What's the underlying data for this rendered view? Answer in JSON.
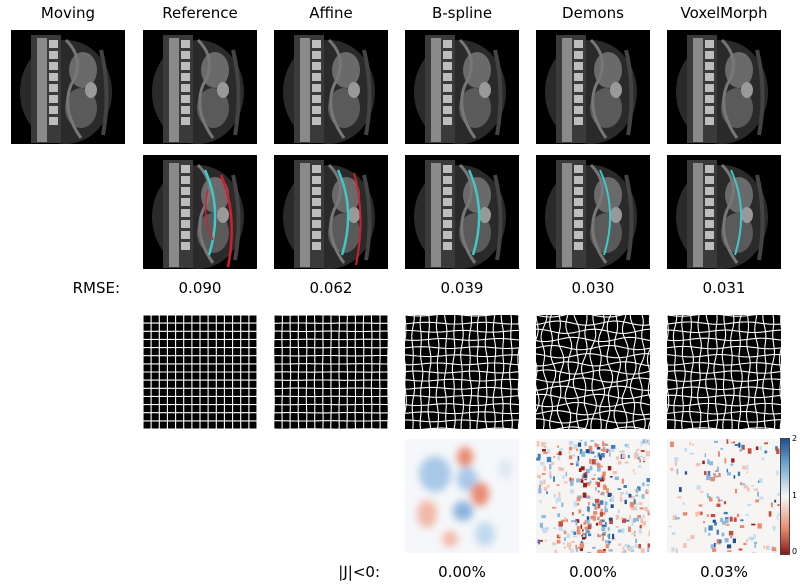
{
  "columns": [
    {
      "title": "Moving",
      "icon": "mri-moving-image"
    },
    {
      "title": "Reference",
      "icon": "mri-reference-image"
    },
    {
      "title": "Affine",
      "icon": "mri-affine-image"
    },
    {
      "title": "B-spline",
      "icon": "mri-bspline-image"
    },
    {
      "title": "Demons",
      "icon": "mri-demons-image"
    },
    {
      "title": "VoxelMorph",
      "icon": "mri-voxelmorph-image"
    }
  ],
  "rmse": {
    "label": "RMSE:",
    "values": [
      "0.090",
      "0.062",
      "0.039",
      "0.030",
      "0.031"
    ]
  },
  "jacobian": {
    "label": "|J|<0:",
    "values": [
      "0.00%",
      "0.00%",
      "0.03%"
    ]
  },
  "colorbar": {
    "ticks": [
      "2",
      "1",
      "0"
    ],
    "colors": {
      "high": "#1f4f8f",
      "mid": "#f7f7f7",
      "low": "#8b1a1a"
    }
  },
  "overlay_colors": {
    "red": "#d02030",
    "cyan": "#40c8c8"
  }
}
